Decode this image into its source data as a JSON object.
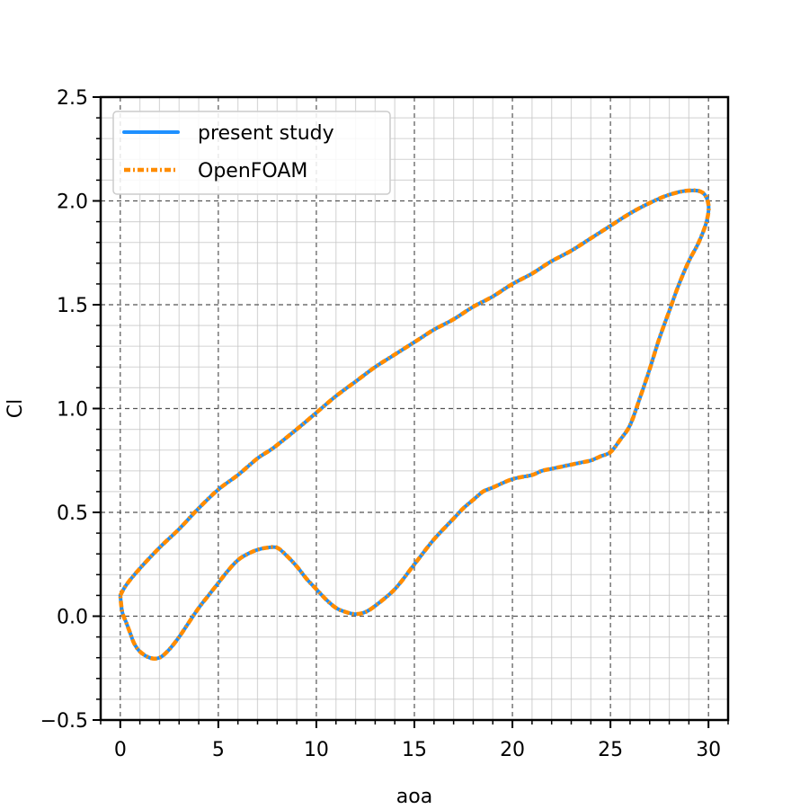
{
  "chart_data": {
    "type": "line",
    "xlabel": "aoa",
    "ylabel": "Cl",
    "xlim": [
      -1,
      31
    ],
    "ylim": [
      -0.5,
      2.5
    ],
    "xticks": [
      0,
      5,
      10,
      15,
      20,
      25,
      30
    ],
    "yticks": [
      -0.5,
      0.0,
      0.5,
      1.0,
      1.5,
      2.0,
      2.5
    ],
    "xtick_labels": [
      "0",
      "5",
      "10",
      "15",
      "20",
      "25",
      "30"
    ],
    "ytick_labels": [
      "−0.5",
      "0.0",
      "0.5",
      "1.0",
      "1.5",
      "2.0",
      "2.5"
    ],
    "grid": {
      "major": true,
      "minor": true
    },
    "legend_position": "top-left",
    "series": [
      {
        "name": "present study",
        "color": "#1e90ff",
        "style": "solid",
        "x": [
          0.0,
          0.3,
          1.0,
          2.0,
          3.0,
          4.0,
          5.0,
          6.0,
          7.0,
          7.8,
          9.0,
          10.0,
          11.0,
          12.0,
          13.0,
          14.0,
          15.0,
          16.0,
          17.0,
          18.0,
          19.0,
          20.0,
          21.0,
          22.0,
          23.0,
          24.0,
          25.0,
          26.0,
          27.0,
          28.0,
          29.0,
          29.7,
          30.0,
          29.9,
          29.5,
          29.0,
          28.5,
          28.0,
          27.5,
          27.0,
          26.5,
          26.0,
          25.5,
          25.0,
          24.5,
          24.0,
          23.5,
          23.0,
          22.5,
          22.0,
          21.5,
          21.0,
          20.0,
          19.0,
          18.5,
          18.0,
          17.5,
          17.0,
          16.0,
          15.0,
          14.0,
          13.0,
          12.5,
          12.0,
          11.5,
          11.0,
          10.5,
          10.0,
          9.5,
          9.0,
          8.5,
          8.0,
          7.5,
          7.0,
          6.5,
          6.0,
          5.5,
          5.0,
          4.5,
          4.0,
          3.5,
          3.0,
          2.5,
          2.0,
          1.5,
          1.0,
          0.7,
          0.5,
          0.3,
          0.1,
          0.0
        ],
        "y": [
          0.1,
          0.15,
          0.23,
          0.33,
          0.42,
          0.52,
          0.61,
          0.68,
          0.76,
          0.81,
          0.9,
          0.98,
          1.06,
          1.13,
          1.2,
          1.26,
          1.32,
          1.38,
          1.43,
          1.49,
          1.54,
          1.6,
          1.65,
          1.71,
          1.76,
          1.82,
          1.88,
          1.94,
          1.99,
          2.03,
          2.05,
          2.04,
          1.98,
          1.9,
          1.8,
          1.71,
          1.6,
          1.47,
          1.34,
          1.19,
          1.05,
          0.92,
          0.85,
          0.79,
          0.77,
          0.75,
          0.74,
          0.73,
          0.72,
          0.71,
          0.7,
          0.68,
          0.66,
          0.62,
          0.6,
          0.56,
          0.52,
          0.47,
          0.37,
          0.25,
          0.13,
          0.05,
          0.02,
          0.01,
          0.02,
          0.04,
          0.08,
          0.13,
          0.18,
          0.24,
          0.29,
          0.33,
          0.33,
          0.32,
          0.3,
          0.27,
          0.22,
          0.16,
          0.1,
          0.04,
          -0.03,
          -0.1,
          -0.16,
          -0.2,
          -0.2,
          -0.17,
          -0.13,
          -0.08,
          -0.03,
          0.02,
          0.1
        ]
      },
      {
        "name": "OpenFOAM",
        "color": "#ff8c00",
        "style": "dashdot",
        "x": [
          0.0,
          0.3,
          1.0,
          2.0,
          3.0,
          4.0,
          5.0,
          6.0,
          7.0,
          7.8,
          9.0,
          10.0,
          11.0,
          12.0,
          13.0,
          14.0,
          15.0,
          16.0,
          17.0,
          18.0,
          19.0,
          20.0,
          21.0,
          22.0,
          23.0,
          24.0,
          25.0,
          26.0,
          27.0,
          28.0,
          29.0,
          29.7,
          30.0,
          29.9,
          29.5,
          29.0,
          28.5,
          28.0,
          27.5,
          27.0,
          26.5,
          26.0,
          25.5,
          25.0,
          24.5,
          24.0,
          23.5,
          23.0,
          22.5,
          22.0,
          21.5,
          21.0,
          20.0,
          19.0,
          18.5,
          18.0,
          17.5,
          17.0,
          16.0,
          15.0,
          14.0,
          13.0,
          12.5,
          12.0,
          11.5,
          11.0,
          10.5,
          10.0,
          9.5,
          9.0,
          8.5,
          8.0,
          7.5,
          7.0,
          6.5,
          6.0,
          5.5,
          5.0,
          4.5,
          4.0,
          3.5,
          3.0,
          2.5,
          2.0,
          1.5,
          1.0,
          0.7,
          0.5,
          0.3,
          0.1,
          0.0
        ],
        "y": [
          0.1,
          0.15,
          0.23,
          0.33,
          0.42,
          0.52,
          0.61,
          0.68,
          0.76,
          0.81,
          0.9,
          0.98,
          1.06,
          1.13,
          1.2,
          1.26,
          1.32,
          1.38,
          1.43,
          1.49,
          1.54,
          1.6,
          1.65,
          1.71,
          1.76,
          1.82,
          1.88,
          1.94,
          1.99,
          2.03,
          2.05,
          2.04,
          1.98,
          1.9,
          1.8,
          1.71,
          1.6,
          1.47,
          1.34,
          1.19,
          1.05,
          0.92,
          0.85,
          0.79,
          0.77,
          0.75,
          0.74,
          0.73,
          0.72,
          0.71,
          0.7,
          0.68,
          0.66,
          0.62,
          0.6,
          0.56,
          0.52,
          0.47,
          0.37,
          0.25,
          0.13,
          0.05,
          0.02,
          0.01,
          0.02,
          0.04,
          0.08,
          0.13,
          0.18,
          0.24,
          0.29,
          0.33,
          0.33,
          0.32,
          0.3,
          0.27,
          0.22,
          0.16,
          0.1,
          0.04,
          -0.03,
          -0.1,
          -0.16,
          -0.2,
          -0.2,
          -0.17,
          -0.13,
          -0.08,
          -0.03,
          0.02,
          0.1
        ]
      }
    ]
  }
}
